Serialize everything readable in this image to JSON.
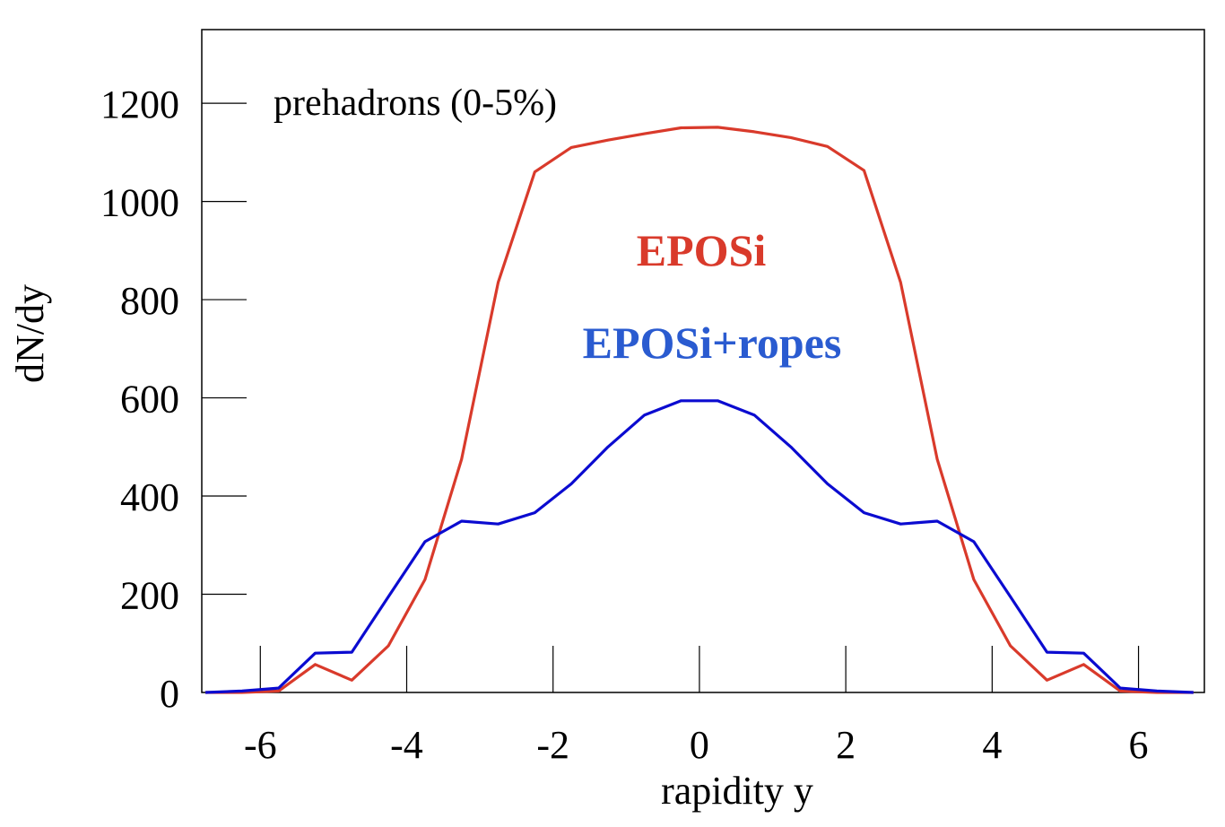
{
  "chart_data": {
    "type": "line",
    "title": "",
    "annotation": "prehadrons (0-5%)",
    "xlabel": "rapidity y",
    "ylabel": "dN/dy",
    "xlim": [
      -6.8,
      6.9
    ],
    "ylim": [
      0,
      1350
    ],
    "x_ticks": [
      -6,
      -4,
      -2,
      0,
      2,
      4,
      6
    ],
    "x_tick_labels": [
      "-6",
      "-4",
      "-2",
      "0",
      "2",
      "4",
      "6"
    ],
    "y_ticks": [
      0,
      200,
      400,
      600,
      800,
      1000,
      1200
    ],
    "y_tick_labels": [
      "0",
      "200",
      "400",
      "600",
      "800",
      "1000",
      "1200"
    ],
    "x": [
      -6.75,
      -6.25,
      -5.75,
      -5.25,
      -4.75,
      -4.25,
      -3.75,
      -3.25,
      -2.75,
      -2.25,
      -1.75,
      -1.25,
      -0.75,
      -0.25,
      0.25,
      0.75,
      1.25,
      1.75,
      2.25,
      2.75,
      3.25,
      3.75,
      4.25,
      4.75,
      5.25,
      5.75,
      6.25,
      6.75
    ],
    "series": [
      {
        "name": "EPOSi",
        "color": "#d93a2b",
        "values": [
          0,
          0,
          3,
          57,
          25,
          95,
          230,
          475,
          835,
          1060,
          1110,
          1125,
          1138,
          1150,
          1151,
          1142,
          1130,
          1112,
          1063,
          835,
          475,
          230,
          95,
          25,
          57,
          3,
          0,
          0
        ]
      },
      {
        "name": "EPOSi+ropes",
        "color": "#0b0bd0",
        "label_color": "#2a5bd0",
        "values": [
          0,
          3,
          9,
          80,
          82,
          195,
          307,
          349,
          343,
          366,
          425,
          500,
          565,
          594,
          594,
          565,
          500,
          425,
          366,
          343,
          349,
          307,
          195,
          82,
          80,
          9,
          3,
          0
        ]
      }
    ]
  }
}
